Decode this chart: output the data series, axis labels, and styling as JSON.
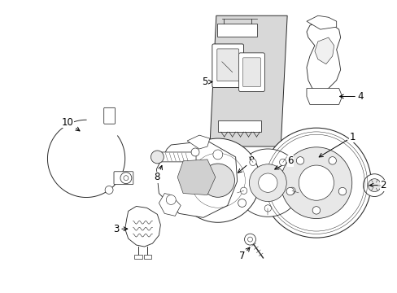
{
  "background_color": "#ffffff",
  "line_color": "#2a2a2a",
  "fig_width": 4.89,
  "fig_height": 3.6,
  "dpi": 100,
  "panel_color": "#d8d8d8",
  "component_fill": "#ffffff",
  "component_fill2": "#e8e8e8"
}
